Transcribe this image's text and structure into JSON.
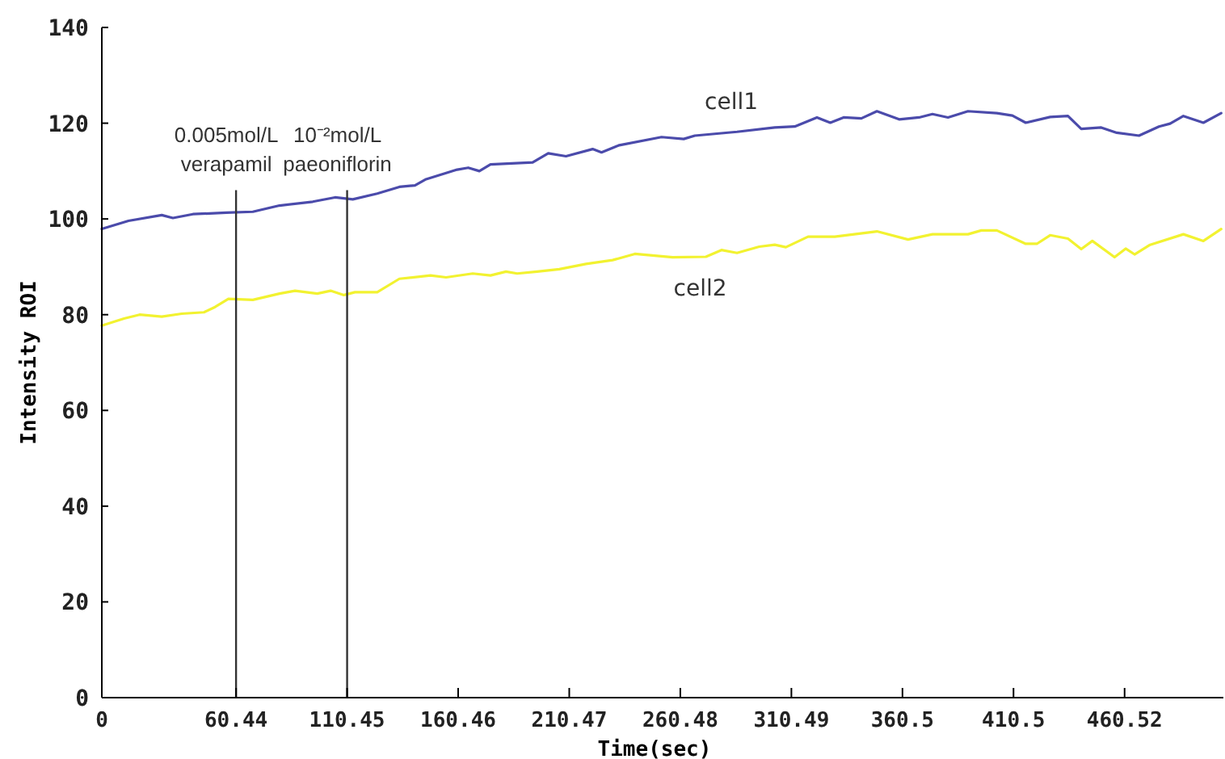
{
  "chart_data": {
    "type": "line",
    "xlabel": "Time(sec)",
    "ylabel": "Intensity ROI",
    "xlim": [
      0,
      505
    ],
    "ylim": [
      0,
      140
    ],
    "xticks": [
      0,
      60.44,
      110.45,
      160.46,
      210.47,
      260.48,
      310.49,
      360.5,
      410.5,
      460.52
    ],
    "yticks": [
      0,
      20,
      40,
      60,
      80,
      100,
      120,
      140
    ],
    "grid": false,
    "marker": "none",
    "line_style": "solid",
    "ref_lines": [
      {
        "axis": "x",
        "value": 60.44,
        "label": "0.005mol/L verapamil",
        "color": "#333333"
      },
      {
        "axis": "x",
        "value": 110.45,
        "label": "10⁻²mol/L paeoniflorin",
        "color": "#333333"
      }
    ],
    "series": [
      {
        "name": "cell1",
        "color": "#4b4bab",
        "x": [
          0,
          12,
          27,
          32,
          41,
          56,
          68,
          80,
          95,
          105,
          113,
          124,
          134,
          141,
          146,
          160,
          165,
          170,
          175,
          194,
          201,
          209,
          221,
          225,
          233,
          252,
          262,
          267,
          286,
          303,
          312,
          322,
          328,
          334,
          342,
          349,
          359,
          368,
          374,
          381,
          390,
          403,
          410,
          416,
          427,
          435,
          441,
          450,
          457,
          467,
          476,
          481,
          487,
          496,
          504
        ],
        "values": [
          97.9,
          99.6,
          100.8,
          100.2,
          101,
          101.3,
          101.5,
          102.8,
          103.6,
          104.5,
          104.1,
          105.3,
          106.7,
          107,
          108.3,
          110.3,
          110.7,
          110,
          111.4,
          111.8,
          113.7,
          113.1,
          114.6,
          113.9,
          115.4,
          117.1,
          116.7,
          117.4,
          118.2,
          119.1,
          119.3,
          121.2,
          120.1,
          121.2,
          121,
          122.5,
          120.8,
          121.2,
          121.9,
          121.2,
          122.5,
          122.1,
          121.6,
          120.1,
          121.3,
          121.5,
          118.8,
          119.1,
          118,
          117.4,
          119.3,
          119.9,
          121.5,
          120.1,
          122.1
        ]
      },
      {
        "name": "cell2",
        "color": "#f2f230",
        "x": [
          0,
          10,
          17,
          27,
          36,
          46,
          51,
          57,
          68,
          80,
          87,
          97,
          103,
          109,
          114,
          124,
          134,
          148,
          155,
          167,
          175,
          182,
          187,
          196,
          206,
          218,
          230,
          240,
          257,
          272,
          279,
          286,
          296,
          303,
          308,
          318,
          330,
          349,
          363,
          374,
          390,
          396,
          403,
          416,
          421,
          427,
          435,
          441,
          446,
          456,
          461,
          465,
          472,
          487,
          496,
          504
        ],
        "values": [
          77.7,
          79.2,
          80,
          79.6,
          80.2,
          80.5,
          81.6,
          83.3,
          83.1,
          84.4,
          85,
          84.4,
          85,
          84.1,
          84.7,
          84.7,
          87.5,
          88.2,
          87.8,
          88.6,
          88.2,
          89,
          88.6,
          89,
          89.5,
          90.6,
          91.4,
          92.7,
          92,
          92.1,
          93.5,
          92.9,
          94.2,
          94.6,
          94.1,
          96.3,
          96.3,
          97.4,
          95.7,
          96.8,
          96.8,
          97.6,
          97.6,
          94.8,
          94.8,
          96.6,
          95.9,
          93.7,
          95.4,
          92,
          93.8,
          92.6,
          94.6,
          96.8,
          95.4,
          97.9
        ]
      }
    ]
  }
}
